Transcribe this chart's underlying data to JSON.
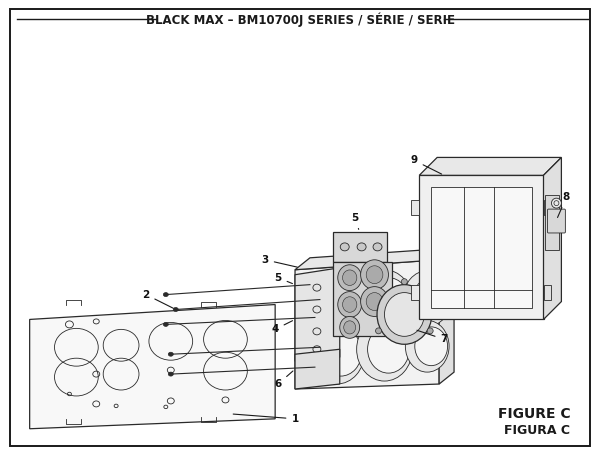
{
  "title": "BLACK MAX – BM10700J SERIES / SÉRIE / SERIE",
  "figure_label": "FIGURE C",
  "figura_label": "FIGURA C",
  "bg_color": "#ffffff",
  "line_color": "#1a1a1a",
  "part_fill": "#f5f5f5",
  "part_stroke": "#2a2a2a",
  "title_fontsize": 8.5,
  "label_fontsize": 8,
  "figure_label_fontsize": 10
}
